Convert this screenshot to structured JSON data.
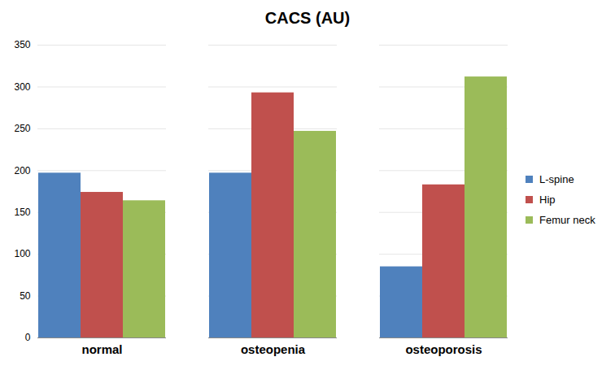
{
  "chart_data": {
    "type": "bar",
    "title": "CACS (AU)",
    "categories": [
      "normal",
      "osteopenia",
      "osteoporosis"
    ],
    "series": [
      {
        "name": "L-spine",
        "color": "#4f81bd",
        "values": [
          197,
          197,
          85
        ]
      },
      {
        "name": "Hip",
        "color": "#c0504d",
        "values": [
          174,
          293,
          183
        ]
      },
      {
        "name": "Femur neck",
        "color": "#9bbb59",
        "values": [
          164,
          247,
          312
        ]
      }
    ],
    "ylim": [
      0,
      350
    ],
    "yticks": [
      0,
      50,
      100,
      150,
      200,
      250,
      300,
      350
    ],
    "grid": true,
    "legend": "right"
  }
}
